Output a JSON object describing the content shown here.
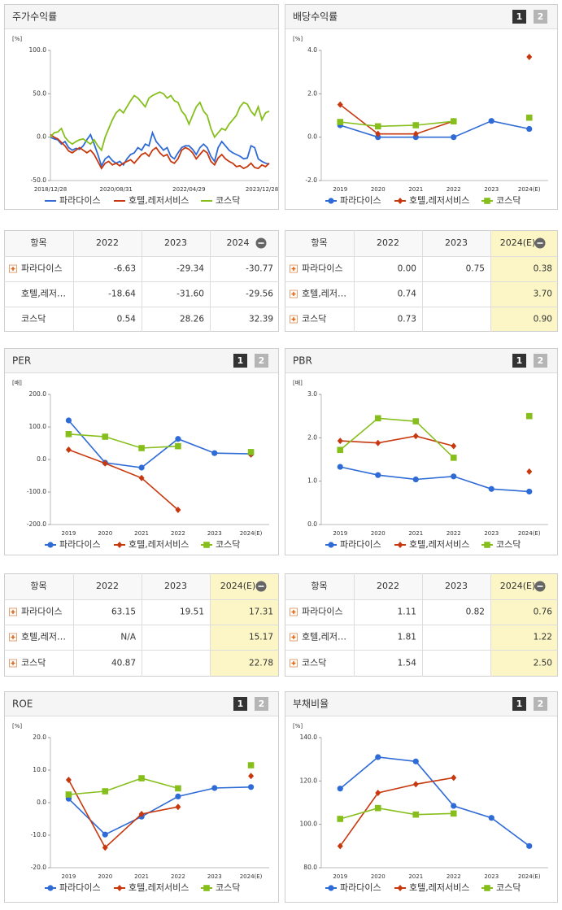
{
  "tab_labels": [
    "1",
    "2"
  ],
  "chart_data": [
    {
      "type": "line",
      "title": "주가수익률",
      "unit": "[%]",
      "categories": [
        "2018/12/28",
        null,
        null,
        null,
        null,
        null,
        null,
        null,
        null,
        null,
        null,
        null,
        null,
        null,
        null,
        null,
        null,
        null,
        "2020/08/31",
        null,
        null,
        null,
        null,
        null,
        null,
        null,
        null,
        null,
        null,
        null,
        null,
        null,
        null,
        null,
        null,
        null,
        null,
        null,
        "2022/04/29",
        null,
        null,
        null,
        null,
        null,
        null,
        null,
        null,
        null,
        null,
        null,
        null,
        null,
        null,
        null,
        null,
        null,
        null,
        null,
        "2023/12/28",
        null,
        null
      ],
      "ylim": [
        -50,
        100
      ],
      "yticks": [
        {
          "value": -50,
          "label": "-50.0"
        },
        {
          "value": 0,
          "label": "0.0"
        },
        {
          "value": 50,
          "label": "50.0"
        },
        {
          "value": 100,
          "label": "100.0"
        }
      ],
      "series": [
        {
          "name": "파라다이스",
          "color": "#2f6bd6",
          "values": [
            0,
            -2,
            -3,
            -8,
            -5,
            -12,
            -15,
            -13,
            -14,
            -10,
            -3,
            3,
            -8,
            -20,
            -33,
            -25,
            -22,
            -27,
            -30,
            -28,
            -32,
            -25,
            -20,
            -18,
            -12,
            -15,
            -8,
            -10,
            5,
            -5,
            -10,
            -15,
            -12,
            -22,
            -25,
            -18,
            -12,
            -10,
            -10,
            -14,
            -20,
            -12,
            -8,
            -12,
            -22,
            -28,
            -12,
            -5,
            -10,
            -15,
            -18,
            -20,
            -22,
            -25,
            -24,
            -10,
            -12,
            -25,
            -28,
            -30,
            -31
          ]
        },
        {
          "name": "호텔,레저서비스",
          "color": "#c8380e",
          "values": [
            3,
            0,
            -2,
            -6,
            -10,
            -16,
            -18,
            -15,
            -12,
            -15,
            -18,
            -15,
            -20,
            -28,
            -36,
            -30,
            -28,
            -32,
            -30,
            -33,
            -30,
            -28,
            -26,
            -30,
            -25,
            -20,
            -18,
            -22,
            -15,
            -12,
            -18,
            -22,
            -20,
            -28,
            -30,
            -25,
            -15,
            -12,
            -14,
            -18,
            -25,
            -20,
            -15,
            -18,
            -28,
            -32,
            -24,
            -20,
            -25,
            -28,
            -30,
            -34,
            -33,
            -36,
            -34,
            -30,
            -35,
            -36,
            -32,
            -34,
            -30
          ]
        },
        {
          "name": "코스닥",
          "color": "#86bf1c",
          "values": [
            0,
            5,
            6,
            10,
            0,
            -5,
            -8,
            -5,
            -3,
            -2,
            -5,
            -8,
            -3,
            -10,
            -15,
            0,
            10,
            20,
            28,
            32,
            28,
            35,
            42,
            48,
            45,
            40,
            35,
            45,
            48,
            50,
            52,
            50,
            45,
            48,
            42,
            40,
            30,
            25,
            15,
            25,
            35,
            40,
            30,
            25,
            10,
            0,
            5,
            10,
            8,
            15,
            20,
            25,
            35,
            40,
            38,
            30,
            25,
            35,
            20,
            28,
            30
          ]
        }
      ]
    },
    {
      "type": "line",
      "title": "배당수익률",
      "unit": "[%]",
      "categories": [
        "2019",
        "2020",
        "2021",
        "2022",
        "2023",
        "2024(E)"
      ],
      "ylim": [
        -2,
        4
      ],
      "yticks": [
        {
          "value": -2,
          "label": "-2.0"
        },
        {
          "value": 0,
          "label": "0.0"
        },
        {
          "value": 2,
          "label": "2.0"
        },
        {
          "value": 4,
          "label": "4.0"
        }
      ],
      "series": [
        {
          "name": "파라다이스",
          "color": "#2f6bd6",
          "marker": "circle",
          "values": [
            0.55,
            0,
            0,
            0,
            0.75,
            0.38
          ]
        },
        {
          "name": "호텔,레저서비스",
          "color": "#c8380e",
          "marker": "diamond",
          "values": [
            1.5,
            0.15,
            0.15,
            0.74,
            null,
            3.7
          ]
        },
        {
          "name": "코스닥",
          "color": "#86bf1c",
          "marker": "square",
          "values": [
            0.7,
            0.5,
            0.55,
            0.73,
            null,
            0.9
          ]
        }
      ]
    },
    {
      "type": "line",
      "title": "PER",
      "unit": "[배]",
      "categories": [
        "2019",
        "2020",
        "2021",
        "2022",
        "2023",
        "2024(E)"
      ],
      "ylim": [
        -200,
        200
      ],
      "yticks": [
        {
          "value": -200,
          "label": "-200.0"
        },
        {
          "value": -100,
          "label": "-100.0"
        },
        {
          "value": 0,
          "label": "0.0"
        },
        {
          "value": 100,
          "label": "100.0"
        },
        {
          "value": 200,
          "label": "200.0"
        }
      ],
      "series": [
        {
          "name": "파라다이스",
          "color": "#2f6bd6",
          "marker": "circle",
          "values": [
            120,
            -10,
            -25,
            63.15,
            19.51,
            17.31
          ]
        },
        {
          "name": "호텔,레저서비스",
          "color": "#c8380e",
          "marker": "diamond",
          "values": [
            30,
            -12,
            -57,
            -155,
            null,
            15.17
          ]
        },
        {
          "name": "코스닥",
          "color": "#86bf1c",
          "marker": "square",
          "values": [
            78,
            70,
            35,
            40.87,
            null,
            22.78
          ]
        }
      ]
    },
    {
      "type": "line",
      "title": "PBR",
      "unit": "[배]",
      "categories": [
        "2019",
        "2020",
        "2021",
        "2022",
        "2023",
        "2024(E)"
      ],
      "ylim": [
        0,
        3
      ],
      "yticks": [
        {
          "value": 0,
          "label": "0.0"
        },
        {
          "value": 1,
          "label": "1.0"
        },
        {
          "value": 2,
          "label": "2.0"
        },
        {
          "value": 3,
          "label": "3.0"
        }
      ],
      "series": [
        {
          "name": "파라다이스",
          "color": "#2f6bd6",
          "marker": "circle",
          "values": [
            1.33,
            1.14,
            1.04,
            1.11,
            0.82,
            0.76
          ]
        },
        {
          "name": "호텔,레저서비스",
          "color": "#c8380e",
          "marker": "diamond",
          "values": [
            1.93,
            1.88,
            2.04,
            1.81,
            null,
            1.22
          ]
        },
        {
          "name": "코스닥",
          "color": "#86bf1c",
          "marker": "square",
          "values": [
            1.72,
            2.45,
            2.38,
            1.54,
            null,
            2.5
          ]
        }
      ]
    },
    {
      "type": "line",
      "title": "ROE",
      "unit": "[%]",
      "categories": [
        "2019",
        "2020",
        "2021",
        "2022",
        "2023",
        "2024(E)"
      ],
      "ylim": [
        -20,
        20
      ],
      "yticks": [
        {
          "value": -20,
          "label": "-20.0"
        },
        {
          "value": -10,
          "label": "-10.0"
        },
        {
          "value": 0,
          "label": "0.0"
        },
        {
          "value": 10,
          "label": "10.0"
        },
        {
          "value": 20,
          "label": "20.0"
        }
      ],
      "series": [
        {
          "name": "파라다이스",
          "color": "#2f6bd6",
          "marker": "circle",
          "values": [
            1.2,
            -9.8,
            -4.3,
            1.9,
            4.5,
            4.8
          ]
        },
        {
          "name": "호텔,레저서비스",
          "color": "#c8380e",
          "marker": "diamond",
          "values": [
            7,
            -13.8,
            -3.5,
            -1.3,
            null,
            8.2
          ]
        },
        {
          "name": "코스닥",
          "color": "#86bf1c",
          "marker": "square",
          "values": [
            2.5,
            3.5,
            7.5,
            4.4,
            null,
            11.5
          ]
        }
      ]
    },
    {
      "type": "line",
      "title": "부채비율",
      "unit": "[%]",
      "categories": [
        "2019",
        "2020",
        "2021",
        "2022",
        "2023",
        "2024(E)"
      ],
      "ylim": [
        80,
        140
      ],
      "yticks": [
        {
          "value": 80,
          "label": "80.0"
        },
        {
          "value": 100,
          "label": "100.0"
        },
        {
          "value": 120,
          "label": "120.0"
        },
        {
          "value": 140,
          "label": "140.0"
        }
      ],
      "series": [
        {
          "name": "파라다이스",
          "color": "#2f6bd6",
          "marker": "circle",
          "values": [
            116.5,
            131,
            129,
            108.5,
            103,
            90
          ]
        },
        {
          "name": "호텔,레저서비스",
          "color": "#c8380e",
          "marker": "diamond",
          "values": [
            90,
            114.5,
            118.5,
            121.5,
            null,
            null
          ]
        },
        {
          "name": "코스닥",
          "color": "#86bf1c",
          "marker": "square",
          "values": [
            102.5,
            107.5,
            104.5,
            105,
            null,
            null
          ]
        }
      ]
    }
  ],
  "tables": [
    {
      "header": [
        "항목",
        "2022",
        "2023",
        "2024"
      ],
      "highlight_last_column": false,
      "rows": [
        {
          "label": "파라다이스",
          "cells": [
            -6.63,
            -29.34,
            -30.77
          ]
        },
        {
          "label": "호텔,레저…",
          "cells": [
            -18.64,
            {
              "value": -31.6,
              "label": "-31.60"
            },
            -29.56
          ]
        },
        {
          "label": "코스닥",
          "cells": [
            0.54,
            28.26,
            32.39
          ]
        }
      ]
    },
    {
      "header": [
        "항목",
        "2022",
        "2023",
        "2024(E)"
      ],
      "highlight_last_column": true,
      "rows": [
        {
          "label": "파라다이스",
          "cells": [
            {
              "value": 0,
              "label": "0.00"
            },
            0.75,
            0.38
          ]
        },
        {
          "label": "호텔,레저…",
          "cells": [
            0.74,
            null,
            {
              "value": 3.7,
              "label": "3.70"
            }
          ]
        },
        {
          "label": "코스닥",
          "cells": [
            0.73,
            null,
            {
              "value": 0.9,
              "label": "0.90"
            }
          ]
        }
      ]
    },
    {
      "header": [
        "항목",
        "2022",
        "2023",
        "2024(E)"
      ],
      "highlight_last_column": true,
      "rows": [
        {
          "label": "파라다이스",
          "cells": [
            63.15,
            19.51,
            17.31
          ]
        },
        {
          "label": "호텔,레저…",
          "cells": [
            "N/A",
            null,
            15.17
          ]
        },
        {
          "label": "코스닥",
          "cells": [
            40.87,
            null,
            22.78
          ]
        }
      ]
    },
    {
      "header": [
        "항목",
        "2022",
        "2023",
        "2024(E)"
      ],
      "highlight_last_column": true,
      "rows": [
        {
          "label": "파라다이스",
          "cells": [
            1.11,
            0.82,
            0.76
          ]
        },
        {
          "label": "호텔,레저…",
          "cells": [
            1.81,
            null,
            1.22
          ]
        },
        {
          "label": "코스닥",
          "cells": [
            1.54,
            null,
            {
              "value": 2.5,
              "label": "2.50"
            }
          ]
        }
      ]
    }
  ]
}
